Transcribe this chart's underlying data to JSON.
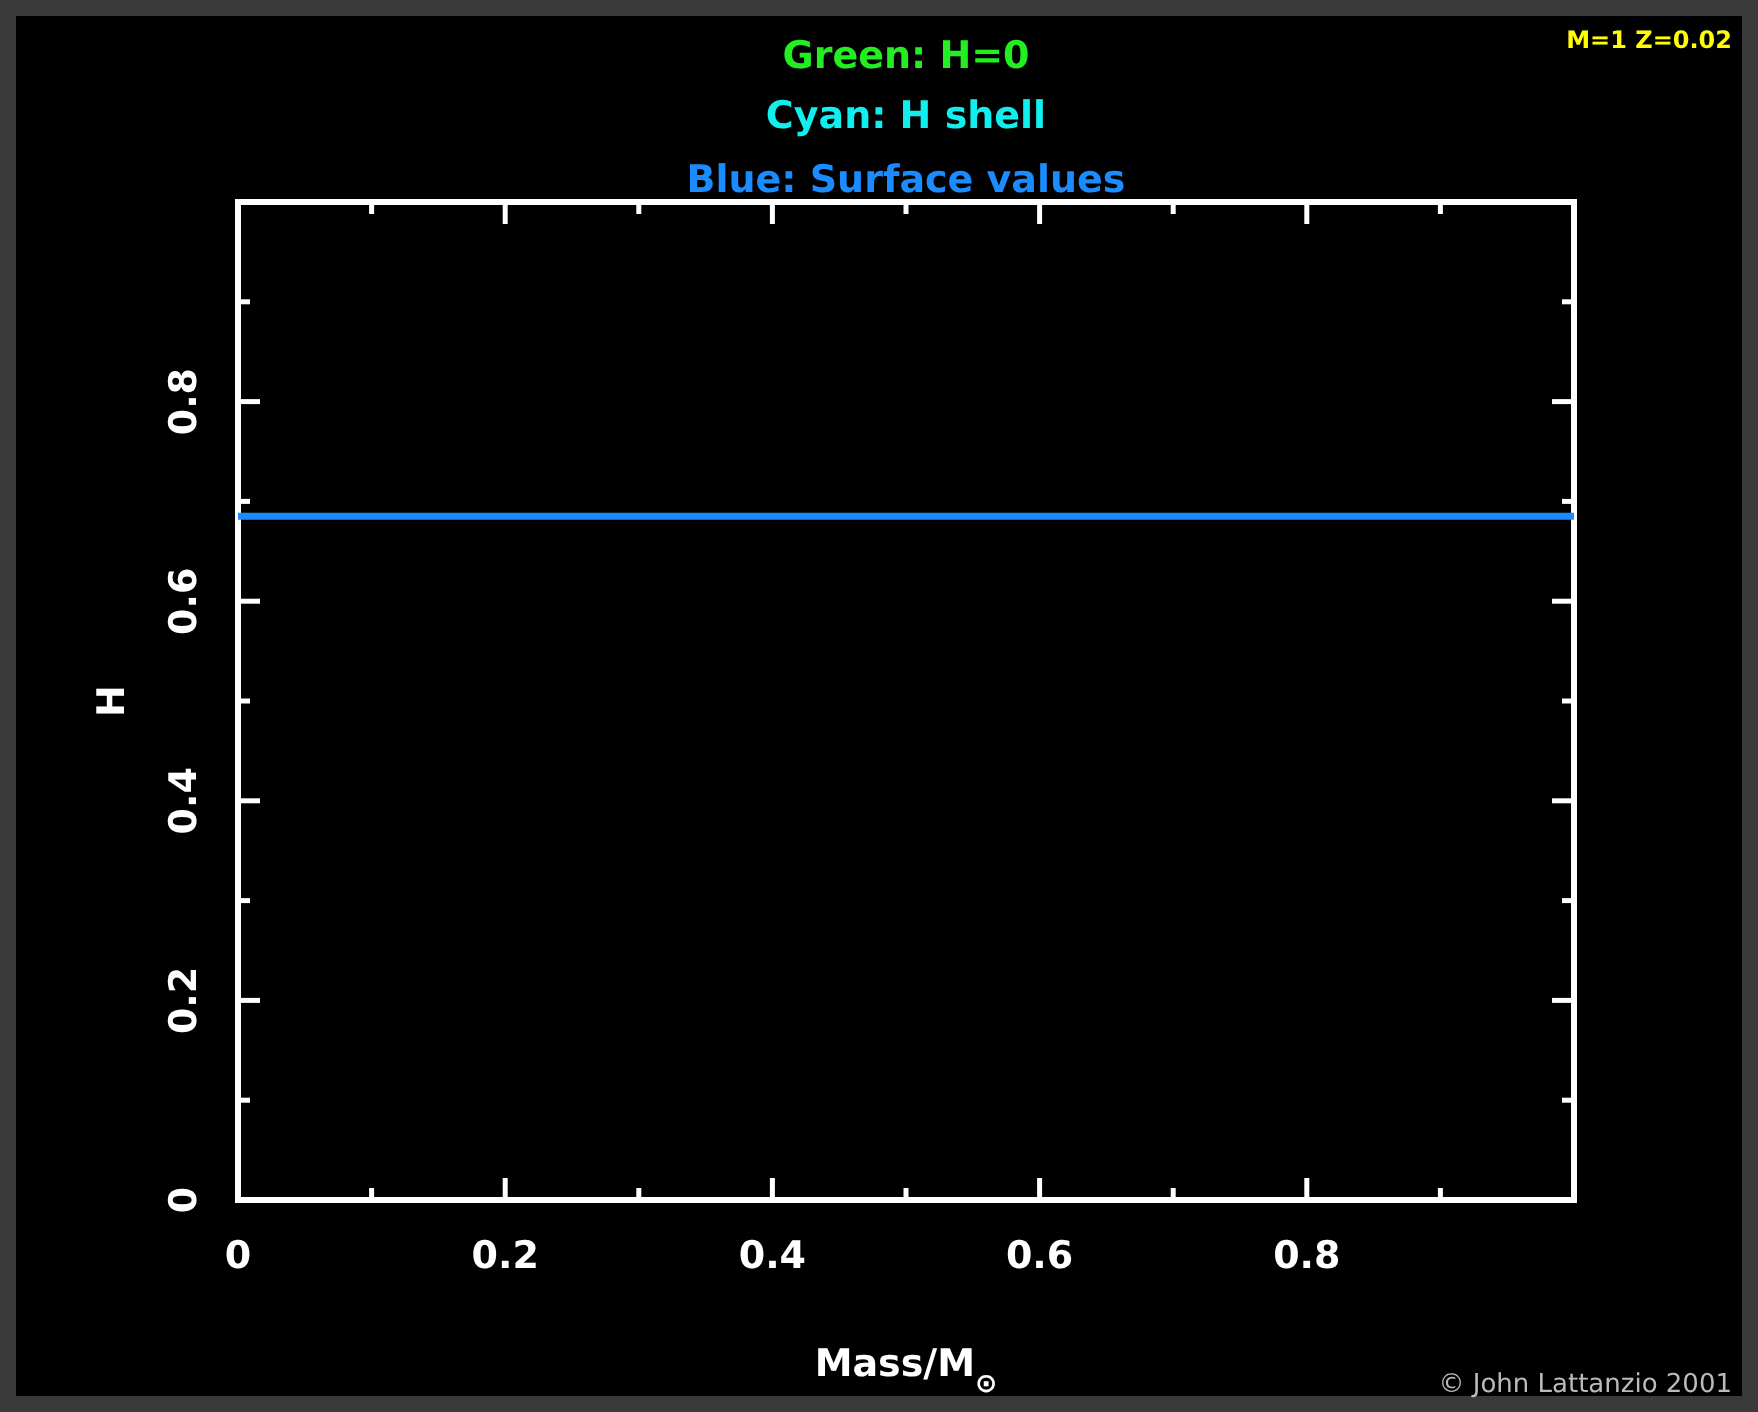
{
  "chart_data": {
    "type": "line",
    "title": "Green: H=0",
    "subtitle": "Cyan: H shell",
    "annotations": [
      "Blue: Surface values",
      "M=1 Z=0.02",
      "© John Lattanzio 2001"
    ],
    "xlabel": "Mass/M$_{⊙}$",
    "ylabel": "H",
    "xlim": [
      0,
      1
    ],
    "ylim": [
      0,
      1
    ],
    "xticks": [
      0,
      {
        "value": 0.1,
        "label": null
      },
      0.2,
      {
        "value": 0.3,
        "label": null
      },
      0.4,
      {
        "value": 0.5,
        "label": null
      },
      0.6,
      {
        "value": 0.7,
        "label": null
      },
      0.8,
      {
        "value": 0.9,
        "label": null
      }
    ],
    "yticks": [
      0,
      {
        "value": 0.1,
        "label": null
      },
      0.2,
      {
        "value": 0.3,
        "label": null
      },
      0.4,
      {
        "value": 0.5,
        "label": null
      },
      0.6,
      {
        "value": 0.7,
        "label": null
      },
      0.8,
      {
        "value": 0.9,
        "label": null
      }
    ],
    "grid": false,
    "series": [
      {
        "color": "#1a8cff",
        "x": [
          0,
          1
        ],
        "values": [
          0.685,
          0.685
        ]
      }
    ]
  }
}
